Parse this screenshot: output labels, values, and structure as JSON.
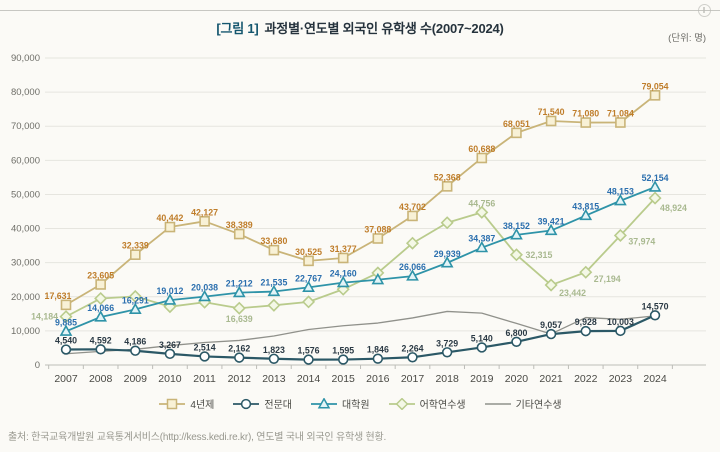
{
  "header": {
    "title_tag": "[그림 1]",
    "title": "과정별·연도별 외국인 유학생 수(2007~2024)",
    "unit_note": "(단위: 명)"
  },
  "footer": {
    "source": "출처: 한국교육개발원 교육통계서비스(http://kess.kedi.re.kr), 연도별 국내 외국인 유학생 현황."
  },
  "chart_data": {
    "type": "line",
    "title": "과정별·연도별 외국인 유학생 수(2007~2024)",
    "unit": "명",
    "x": [
      2007,
      2008,
      2009,
      2010,
      2011,
      2012,
      2013,
      2014,
      2015,
      2016,
      2017,
      2018,
      2019,
      2020,
      2021,
      2022,
      2023,
      2024
    ],
    "ylim": [
      0,
      90000
    ],
    "ytick_step": 10000,
    "yticks": [
      "0",
      "10,000",
      "20,000",
      "30,000",
      "40,000",
      "50,000",
      "60,000",
      "70,000",
      "80,000",
      "90,000"
    ],
    "grid": true,
    "legend_position": "bottom-center",
    "series": [
      {
        "name": "4년제",
        "marker": "square",
        "color": "#c9b478",
        "marker_fill": "#f8f1d6",
        "label_color": "#bf7d2a",
        "values": [
          17631,
          23605,
          32339,
          40442,
          42127,
          38389,
          33680,
          30525,
          31377,
          37088,
          43702,
          52368,
          60688,
          68051,
          71540,
          71080,
          71084,
          79054
        ],
        "labels": [
          "17,631",
          "23,605",
          "32,339",
          "40,442",
          "42,127",
          "38,389",
          "33,680",
          "30,525",
          "31,377",
          "37,088",
          "43,702",
          "52,368",
          "60,688",
          "68,051",
          "71,540",
          "71,080",
          "71,084",
          "79,054"
        ]
      },
      {
        "name": "전문대",
        "marker": "circle",
        "color": "#2b5866",
        "marker_fill": "#ffffff",
        "label_color": "#2b3a45",
        "values": [
          4540,
          4592,
          4186,
          3267,
          2514,
          2162,
          1823,
          1576,
          1595,
          1846,
          2264,
          3729,
          5140,
          6800,
          9057,
          9928,
          10003,
          14570
        ],
        "labels": [
          "4,540",
          "4,592",
          "4,186",
          "3,267",
          "2,514",
          "2,162",
          "1,823",
          "1,576",
          "1,595",
          "1,846",
          "2,264",
          "3,729",
          "5,140",
          "6,800",
          "9,057",
          "9,928",
          "10,003",
          "14,570"
        ]
      },
      {
        "name": "대학원",
        "marker": "triangle",
        "color": "#2e93a8",
        "marker_fill": "#e3f4f7",
        "label_color": "#2b6fae",
        "values": [
          9885,
          14066,
          16291,
          19012,
          20038,
          21212,
          21535,
          22767,
          24160,
          25000,
          26066,
          29939,
          34387,
          38152,
          39421,
          43815,
          48153,
          52154
        ],
        "labels": [
          "9,885",
          "14,066",
          "16,291",
          "19,012",
          "20,038",
          "21,212",
          "21,535",
          "22,767",
          "24,160",
          null,
          "26,066",
          "29,939",
          "34,387",
          "38,152",
          "39,421",
          "43,815",
          "48,153",
          "52,154"
        ]
      },
      {
        "name": "어학연수생",
        "marker": "diamond",
        "color": "#b9cb8c",
        "marker_fill": "#f4f8e6",
        "label_color": "#a9b990",
        "values": [
          14184,
          19500,
          20100,
          17100,
          18400,
          16639,
          17500,
          18500,
          22200,
          27000,
          35700,
          41700,
          44756,
          32315,
          23442,
          27194,
          37974,
          48924
        ],
        "labels": [
          "14,184",
          null,
          null,
          null,
          null,
          "16,639",
          null,
          null,
          null,
          null,
          null,
          null,
          "44,756",
          "32,315",
          "23,442",
          "27,194",
          "37,974",
          "48,924"
        ]
      },
      {
        "name": "기타연수생",
        "marker": "none",
        "color": "#90918b",
        "marker_fill": null,
        "label_color": null,
        "values": [
          3300,
          4000,
          4600,
          5700,
          6600,
          7200,
          8500,
          10400,
          11500,
          12300,
          13800,
          15700,
          15200,
          12200,
          9100,
          13900,
          13400,
          14400
        ],
        "labels": null
      }
    ],
    "label_offsets": {
      "0:0": [
        -8,
        -6,
        "middle"
      ],
      "3:0": [
        -8,
        3,
        "end"
      ],
      "3:5": [
        0,
        14,
        "middle"
      ],
      "3:13": [
        9,
        3,
        "start"
      ],
      "3:14": [
        8,
        11,
        "start"
      ],
      "3:15": [
        8,
        10,
        "start"
      ],
      "3:16": [
        8,
        9,
        "start"
      ],
      "3:17": [
        5,
        13,
        "start"
      ]
    }
  }
}
